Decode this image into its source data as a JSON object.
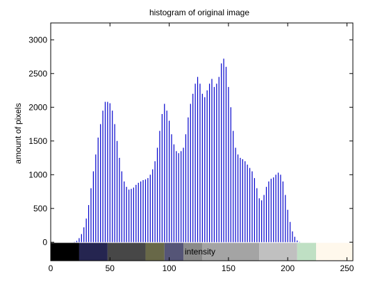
{
  "chart_data": {
    "type": "bar",
    "title": "histogram of original image",
    "xlabel": "intensity",
    "ylabel": "amount of pixels",
    "xlim": [
      0,
      255
    ],
    "ylim": [
      -275,
      3250
    ],
    "xticks": [
      0,
      50,
      100,
      150,
      200,
      250
    ],
    "yticks": [
      0,
      500,
      1000,
      1500,
      2000,
      2500,
      3000
    ],
    "grid": false,
    "bar_color": "#0000cc",
    "x": [
      20,
      22,
      24,
      26,
      28,
      30,
      32,
      34,
      36,
      38,
      40,
      42,
      44,
      46,
      48,
      50,
      52,
      54,
      56,
      58,
      60,
      62,
      64,
      66,
      68,
      70,
      72,
      74,
      76,
      78,
      80,
      82,
      84,
      86,
      88,
      90,
      92,
      94,
      96,
      98,
      100,
      102,
      104,
      106,
      108,
      110,
      112,
      114,
      116,
      118,
      120,
      122,
      124,
      126,
      128,
      130,
      132,
      134,
      136,
      138,
      140,
      142,
      144,
      146,
      148,
      150,
      152,
      154,
      156,
      158,
      160,
      162,
      164,
      166,
      168,
      170,
      172,
      174,
      176,
      178,
      180,
      182,
      184,
      186,
      188,
      190,
      192,
      194,
      196,
      198,
      200,
      202,
      204,
      206,
      208,
      210,
      212,
      214,
      216,
      218,
      220,
      222,
      224,
      226,
      228,
      230,
      232
    ],
    "values": [
      5,
      20,
      60,
      120,
      220,
      350,
      550,
      800,
      1050,
      1300,
      1550,
      1750,
      1950,
      2080,
      2080,
      2060,
      1950,
      1750,
      1500,
      1250,
      1050,
      900,
      820,
      780,
      790,
      810,
      850,
      880,
      900,
      920,
      930,
      950,
      1000,
      1080,
      1200,
      1400,
      1650,
      1900,
      2050,
      1950,
      1800,
      1600,
      1450,
      1350,
      1320,
      1350,
      1400,
      1600,
      1850,
      2050,
      2200,
      2350,
      2450,
      2350,
      2200,
      2150,
      2250,
      2350,
      2420,
      2300,
      2350,
      2450,
      2650,
      2720,
      2600,
      2300,
      2000,
      1650,
      1400,
      1300,
      1250,
      1230,
      1200,
      1150,
      1100,
      1050,
      950,
      800,
      650,
      620,
      700,
      820,
      900,
      940,
      960,
      1000,
      1030,
      1000,
      900,
      700,
      480,
      300,
      160,
      80,
      25,
      5,
      0,
      0,
      0,
      0,
      0,
      0,
      0,
      0,
      0,
      0,
      0
    ],
    "colorbar": [
      {
        "from": 0,
        "to": 24,
        "color": "#000000"
      },
      {
        "from": 24,
        "to": 48,
        "color": "#252550"
      },
      {
        "from": 48,
        "to": 80,
        "color": "#474747"
      },
      {
        "from": 80,
        "to": 96,
        "color": "#686848"
      },
      {
        "from": 96,
        "to": 112,
        "color": "#555577"
      },
      {
        "from": 112,
        "to": 128,
        "color": "#8a8a8a"
      },
      {
        "from": 128,
        "to": 176,
        "color": "#a4a4a4"
      },
      {
        "from": 176,
        "to": 208,
        "color": "#c0c0c0"
      },
      {
        "from": 208,
        "to": 224,
        "color": "#bfe0c4"
      },
      {
        "from": 224,
        "to": 255,
        "color": "#fff8ec"
      }
    ]
  }
}
